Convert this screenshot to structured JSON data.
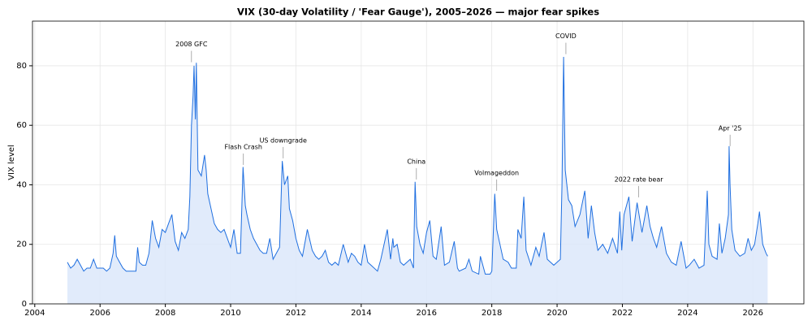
{
  "chart_data": {
    "type": "line",
    "title": "VIX (30-day Volatility / 'Fear Gauge'), 2005–2026 — major fear spikes",
    "y_label": "VIX level",
    "color": "#1f6fe0",
    "area_color": "#dce8fa",
    "fill": true,
    "grid": true,
    "xlim": [
      2003.93,
      2027.56
    ],
    "ylim": [
      0,
      95
    ],
    "xticks": [
      2004,
      2006,
      2008,
      2010,
      2012,
      2014,
      2016,
      2018,
      2020,
      2022,
      2024,
      2026
    ],
    "yticks": [
      0,
      20,
      40,
      60,
      80
    ],
    "x": [
      2005.0,
      2005.1,
      2005.2,
      2005.3,
      2005.4,
      2005.5,
      2005.6,
      2005.7,
      2005.8,
      2005.9,
      2006.0,
      2006.1,
      2006.2,
      2006.3,
      2006.4,
      2006.45,
      2006.5,
      2006.6,
      2006.7,
      2006.8,
      2006.9,
      2007.0,
      2007.1,
      2007.15,
      2007.2,
      2007.3,
      2007.4,
      2007.5,
      2007.6,
      2007.7,
      2007.8,
      2007.9,
      2008.0,
      2008.1,
      2008.2,
      2008.3,
      2008.4,
      2008.5,
      2008.6,
      2008.7,
      2008.75,
      2008.8,
      2008.85,
      2008.88,
      2008.92,
      2008.95,
      2009.0,
      2009.1,
      2009.2,
      2009.25,
      2009.3,
      2009.4,
      2009.5,
      2009.6,
      2009.7,
      2009.8,
      2009.9,
      2010.0,
      2010.1,
      2010.2,
      2010.3,
      2010.38,
      2010.45,
      2010.5,
      2010.6,
      2010.7,
      2010.8,
      2010.9,
      2011.0,
      2011.1,
      2011.2,
      2011.3,
      2011.4,
      2011.5,
      2011.58,
      2011.65,
      2011.75,
      2011.8,
      2011.9,
      2012.0,
      2012.1,
      2012.2,
      2012.35,
      2012.5,
      2012.6,
      2012.7,
      2012.8,
      2012.9,
      2013.0,
      2013.1,
      2013.2,
      2013.3,
      2013.45,
      2013.6,
      2013.7,
      2013.8,
      2013.9,
      2014.0,
      2014.1,
      2014.2,
      2014.3,
      2014.5,
      2014.6,
      2014.8,
      2014.9,
      2014.97,
      2015.0,
      2015.1,
      2015.2,
      2015.3,
      2015.5,
      2015.6,
      2015.65,
      2015.7,
      2015.8,
      2015.9,
      2016.0,
      2016.1,
      2016.2,
      2016.3,
      2016.45,
      2016.55,
      2016.7,
      2016.85,
      2016.95,
      2017.0,
      2017.2,
      2017.3,
      2017.4,
      2017.6,
      2017.65,
      2017.8,
      2017.95,
      2018.0,
      2018.09,
      2018.15,
      2018.25,
      2018.35,
      2018.5,
      2018.6,
      2018.75,
      2018.8,
      2018.9,
      2018.98,
      2019.05,
      2019.2,
      2019.35,
      2019.45,
      2019.6,
      2019.7,
      2019.9,
      2020.0,
      2020.1,
      2020.15,
      2020.2,
      2020.25,
      2020.35,
      2020.45,
      2020.55,
      2020.7,
      2020.85,
      2020.95,
      2021.05,
      2021.15,
      2021.25,
      2021.4,
      2021.55,
      2021.7,
      2021.85,
      2021.92,
      2021.98,
      2022.05,
      2022.2,
      2022.3,
      2022.45,
      2022.6,
      2022.75,
      2022.85,
      2022.95,
      2023.05,
      2023.2,
      2023.35,
      2023.5,
      2023.65,
      2023.8,
      2023.95,
      2024.05,
      2024.2,
      2024.35,
      2024.5,
      2024.6,
      2024.65,
      2024.75,
      2024.9,
      2024.97,
      2025.05,
      2025.15,
      2025.25,
      2025.27,
      2025.3,
      2025.35,
      2025.45,
      2025.6,
      2025.75,
      2025.85,
      2025.95,
      2026.05,
      2026.15,
      2026.2,
      2026.3,
      2026.4,
      2026.45
    ],
    "values": [
      14,
      12,
      13,
      15,
      13,
      11,
      12,
      12,
      15,
      12,
      12,
      12,
      11,
      12,
      17,
      23,
      16,
      14,
      12,
      11,
      11,
      11,
      11,
      19,
      14,
      13,
      13,
      17,
      28,
      22,
      19,
      25,
      24,
      27,
      30,
      21,
      18,
      24,
      22,
      25,
      36,
      60,
      70,
      80,
      62,
      81,
      45,
      43,
      50,
      45,
      37,
      32,
      27,
      25,
      24,
      25,
      22,
      19,
      25,
      17,
      17,
      46,
      33,
      30,
      25,
      22,
      20,
      18,
      17,
      17,
      22,
      15,
      17,
      19,
      48,
      40,
      43,
      32,
      28,
      22,
      18,
      16,
      25,
      18,
      16,
      15,
      16,
      18,
      14,
      13,
      14,
      13,
      20,
      14,
      17,
      16,
      14,
      13,
      20,
      14,
      13,
      11,
      15,
      25,
      15,
      22,
      19,
      20,
      14,
      13,
      15,
      12,
      41,
      26,
      20,
      17,
      24,
      28,
      16,
      15,
      26,
      13,
      14,
      21,
      12,
      11,
      12,
      15,
      11,
      10,
      16,
      10,
      10,
      11,
      37,
      25,
      20,
      15,
      14,
      12,
      12,
      25,
      22,
      36,
      18,
      13,
      19,
      16,
      24,
      15,
      13,
      14,
      15,
      40,
      83,
      45,
      35,
      33,
      26,
      30,
      38,
      22,
      33,
      24,
      18,
      20,
      17,
      22,
      17,
      31,
      18,
      30,
      36,
      21,
      34,
      24,
      33,
      26,
      22,
      19,
      26,
      17,
      14,
      13,
      21,
      12,
      13,
      15,
      12,
      13,
      38,
      20,
      16,
      15,
      27,
      17,
      22,
      30,
      53,
      40,
      25,
      18,
      16,
      17,
      22,
      18,
      20,
      27,
      31,
      20,
      17,
      16
    ],
    "annotations": [
      {
        "text": "2008 GFC",
        "x": 2008.8,
        "y": 87.2
      },
      {
        "text": "Flash Crash",
        "x": 2010.39,
        "y": 52.7
      },
      {
        "text": "US downgrade",
        "x": 2011.61,
        "y": 54.9
      },
      {
        "text": "China",
        "x": 2015.69,
        "y": 47.8
      },
      {
        "text": "Volmageddon",
        "x": 2018.15,
        "y": 44
      },
      {
        "text": "COVID",
        "x": 2020.27,
        "y": 89.9
      },
      {
        "text": "2022 rate bear",
        "x": 2022.5,
        "y": 41.8
      },
      {
        "text": "Apr '25",
        "x": 2025.3,
        "y": 59
      }
    ]
  }
}
